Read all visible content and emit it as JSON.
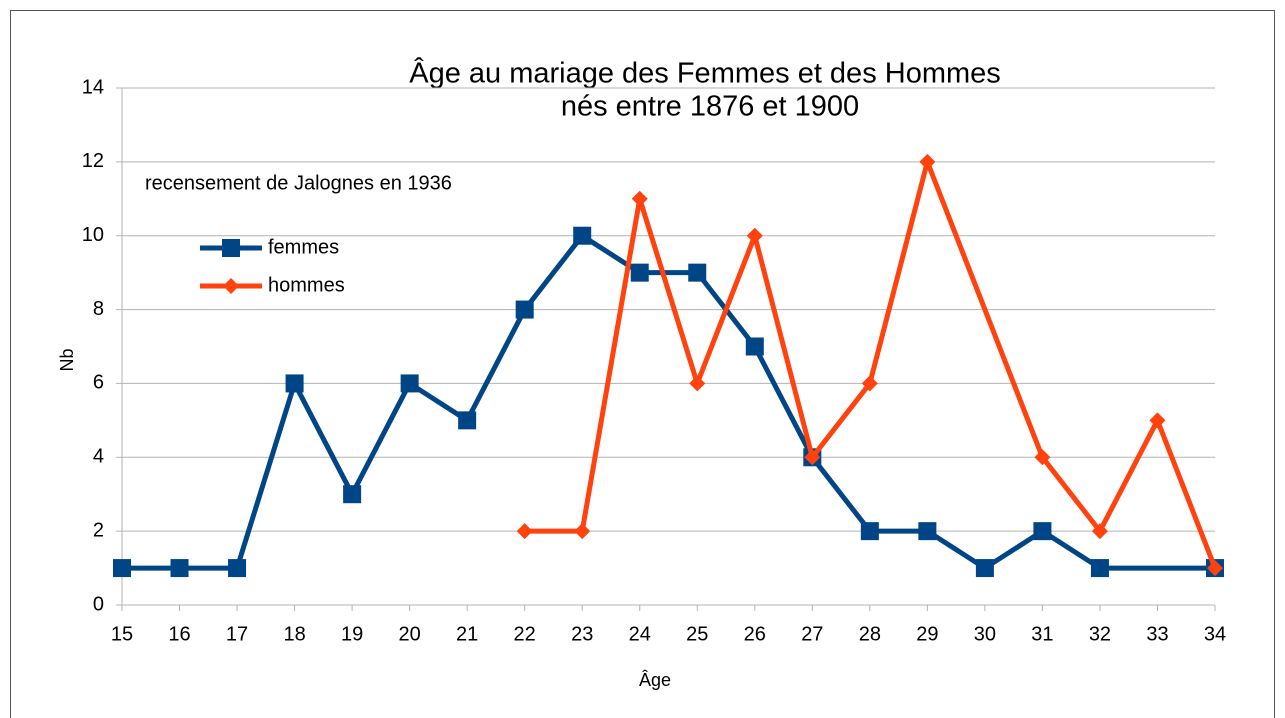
{
  "chart_data": {
    "type": "line",
    "title": [
      "Âge au mariage des Femmes et des Hommes",
      "nés entre 1876 et 1900"
    ],
    "annotation": "recensement de Jalognes en 1936",
    "x_label": "Âge",
    "y_label": "Nb",
    "xlim": [
      15,
      34
    ],
    "xticks": [
      15,
      16,
      17,
      18,
      19,
      20,
      21,
      22,
      23,
      24,
      25,
      26,
      27,
      28,
      29,
      30,
      31,
      32,
      33,
      34
    ],
    "ylim": [
      0,
      14
    ],
    "yticks": [
      0,
      2,
      4,
      6,
      8,
      10,
      12,
      14
    ],
    "grid": true,
    "series": [
      {
        "name": "femmes",
        "color": "#004586",
        "marker": "square",
        "x": [
          15,
          16,
          17,
          18,
          19,
          20,
          21,
          22,
          23,
          24,
          25,
          26,
          27,
          28,
          29,
          30,
          31,
          32,
          34
        ],
        "values": [
          1,
          1,
          1,
          6,
          3,
          6,
          5,
          8,
          10,
          9,
          9,
          7,
          4,
          2,
          2,
          1,
          2,
          1,
          1
        ]
      },
      {
        "name": "hommes",
        "color": "#ff420e",
        "marker": "diamond",
        "x": [
          22,
          23,
          24,
          25,
          26,
          27,
          28,
          29,
          31,
          32,
          33,
          34
        ],
        "values": [
          2,
          2,
          11,
          6,
          10,
          4,
          6,
          12,
          4,
          2,
          5,
          1
        ]
      }
    ]
  }
}
